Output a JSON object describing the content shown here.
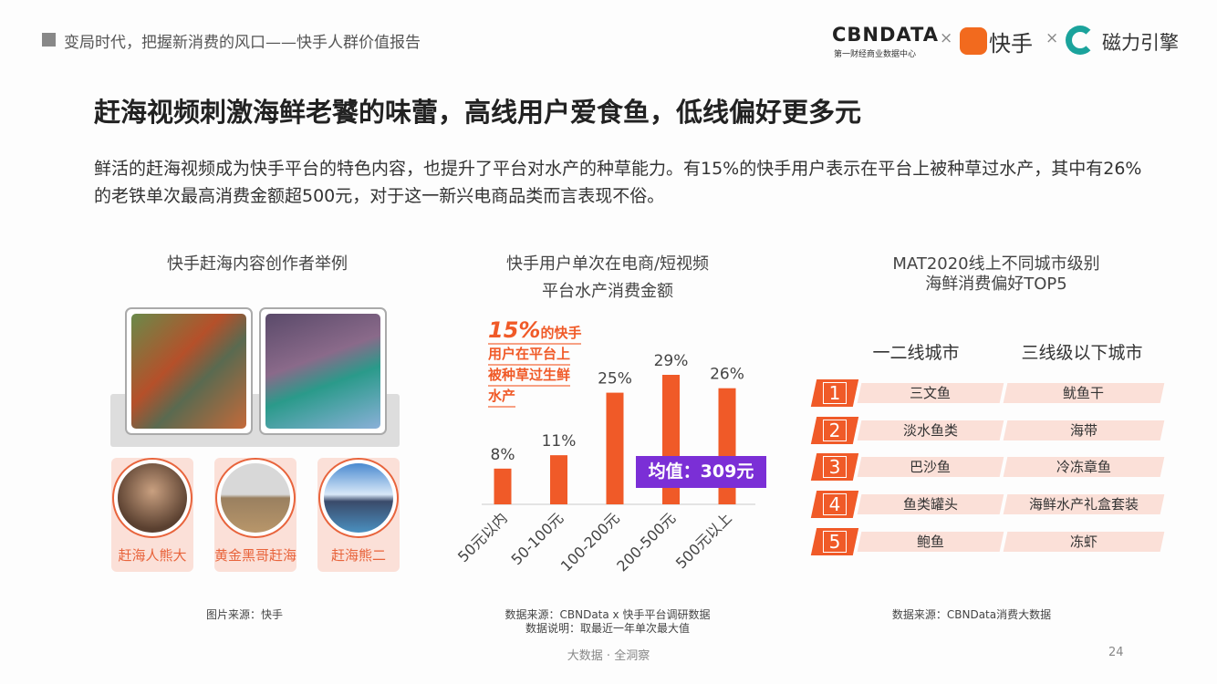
{
  "header": {
    "title": "变局时代，把握新消费的风口——快手人群价值报告",
    "logo_cbn": "CBNDATA",
    "logo_cbn_sub": "第一财经商业数据中心",
    "logo_kuaishou": "快手",
    "logo_cili": "磁力引擎",
    "times": "×"
  },
  "slide": {
    "title": "赶海视频刺激海鲜老饕的味蕾，高线用户爱食鱼，低线偏好更多元",
    "paragraph": "鲜活的赶海视频成为快手平台的特色内容，也提升了平台对水产的种草能力。有15%的快手用户表示在平台上被种草过水产，其中有26%的老铁单次最高消费金额超500元，对于这一新兴电商品类而言表现不俗。"
  },
  "left": {
    "title": "快手赶海内容创作者举例",
    "creators": [
      "赶海人熊大",
      "黄金黑哥赶海",
      "赶海熊二"
    ],
    "source": "图片来源：快手"
  },
  "middle": {
    "title_line1": "快手用户单次在电商/短视频",
    "title_line2": "平台水产消费金额",
    "anno_pct": "15%",
    "anno_l1": "的快手",
    "anno_l2": "用户在平台上",
    "anno_l3": "被种草过生鲜",
    "anno_l4": "水产",
    "avg": "均值：309元",
    "source1": "数据来源：CBNData x 快手平台调研数据",
    "source2": "数据说明：取最近一年单次最大值"
  },
  "chart_data": {
    "type": "bar",
    "title": "快手用户单次在电商/短视频平台水产消费金额",
    "categories": [
      "50元以内",
      "50-100元",
      "100-200元",
      "200-500元",
      "500元以上"
    ],
    "values": [
      8,
      11,
      25,
      29,
      26
    ],
    "labels": [
      "8%",
      "11%",
      "25%",
      "29%",
      "26%"
    ],
    "ylim": [
      0,
      30
    ],
    "unit": "%",
    "color": "#f05a28",
    "annotation": "均值：309元"
  },
  "right": {
    "title_line1": "MAT2020线上不同城市级别",
    "title_line2": "海鲜消费偏好TOP5",
    "col1": "一二线城市",
    "col2": "三线级以下城市",
    "rows": [
      {
        "rank": "1",
        "a": "三文鱼",
        "b": "鱿鱼干"
      },
      {
        "rank": "2",
        "a": "淡水鱼类",
        "b": "海带"
      },
      {
        "rank": "3",
        "a": "巴沙鱼",
        "b": "冷冻章鱼"
      },
      {
        "rank": "4",
        "a": "鱼类罐头",
        "b": "海鲜水产礼盒套装"
      },
      {
        "rank": "5",
        "a": "鲍鱼",
        "b": "冻虾"
      }
    ],
    "source": "数据来源：CBNData消费大数据"
  },
  "footer": {
    "tagline": "大数据 · 全洞察",
    "page": "24"
  }
}
